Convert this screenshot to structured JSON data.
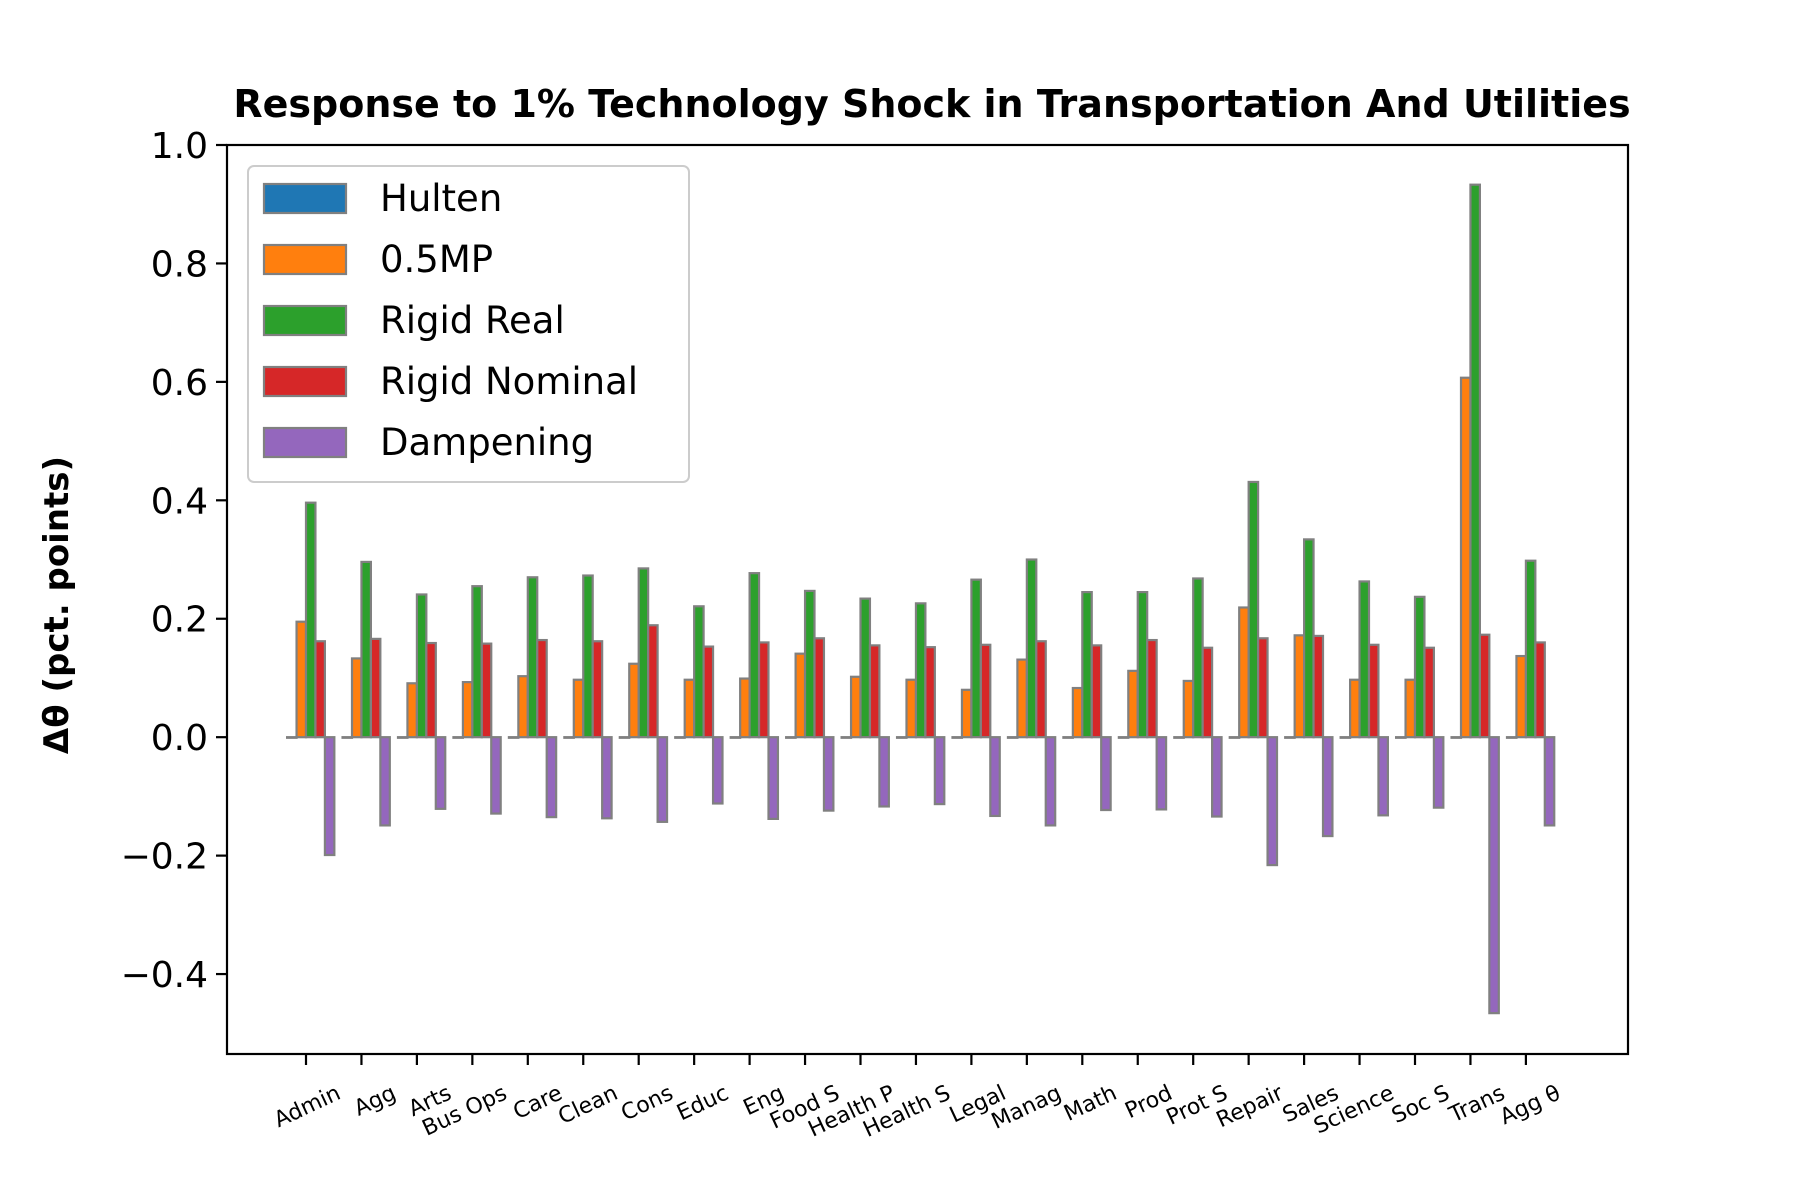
{
  "chart_data": {
    "type": "bar",
    "title": "Response to 1% Technology Shock in Transportation And Utilities",
    "xlabel": "",
    "ylabel": "Δθ  (pct. points)",
    "ylim": [
      -0.535,
      1.0
    ],
    "yticks": [
      -0.4,
      -0.2,
      0.0,
      0.2,
      0.4,
      0.6,
      0.8,
      1.0
    ],
    "ytick_labels": [
      "−0.4",
      "−0.2",
      "0.0",
      "0.2",
      "0.4",
      "0.6",
      "0.8",
      "1.0"
    ],
    "grid": false,
    "legend_position": "upper-left",
    "categories": [
      "Admin",
      "Agg",
      "Arts",
      "Bus Ops",
      "Care",
      "Clean",
      "Cons",
      "Educ",
      "Eng",
      "Food S",
      "Health P",
      "Health S",
      "Legal",
      "Manag",
      "Math",
      "Prod",
      "Prot S",
      "Repair",
      "Sales",
      "Science",
      "Soc S",
      "Trans",
      "Agg θ"
    ],
    "series": [
      {
        "name": "Hulten",
        "color": "#1f77b4",
        "values": [
          0,
          0,
          0,
          0,
          0,
          0,
          0,
          0,
          0,
          0,
          0,
          0,
          0,
          0,
          0,
          0,
          0,
          0,
          0,
          0,
          0,
          0,
          0
        ]
      },
      {
        "name": "0.5MP",
        "color": "#ff7f0e",
        "values": [
          0.195,
          0.133,
          0.091,
          0.093,
          0.103,
          0.097,
          0.124,
          0.097,
          0.099,
          0.141,
          0.102,
          0.097,
          0.08,
          0.131,
          0.083,
          0.112,
          0.095,
          0.219,
          0.172,
          0.097,
          0.097,
          0.607,
          0.137
        ]
      },
      {
        "name": "Rigid Real",
        "color": "#2ca02c",
        "values": [
          0.396,
          0.296,
          0.241,
          0.255,
          0.27,
          0.273,
          0.285,
          0.221,
          0.277,
          0.247,
          0.234,
          0.226,
          0.266,
          0.3,
          0.245,
          0.245,
          0.268,
          0.431,
          0.334,
          0.263,
          0.237,
          0.933,
          0.298
        ]
      },
      {
        "name": "Rigid Nominal",
        "color": "#d62728",
        "values": [
          0.162,
          0.166,
          0.159,
          0.158,
          0.164,
          0.162,
          0.189,
          0.153,
          0.16,
          0.167,
          0.155,
          0.152,
          0.156,
          0.162,
          0.155,
          0.164,
          0.151,
          0.167,
          0.171,
          0.156,
          0.151,
          0.173,
          0.16
        ]
      },
      {
        "name": "Dampening",
        "color": "#9467bd",
        "values": [
          -0.199,
          -0.149,
          -0.121,
          -0.129,
          -0.135,
          -0.137,
          -0.143,
          -0.112,
          -0.138,
          -0.124,
          -0.117,
          -0.113,
          -0.133,
          -0.149,
          -0.123,
          -0.122,
          -0.134,
          -0.216,
          -0.167,
          -0.132,
          -0.119,
          -0.466,
          -0.149
        ]
      }
    ]
  }
}
